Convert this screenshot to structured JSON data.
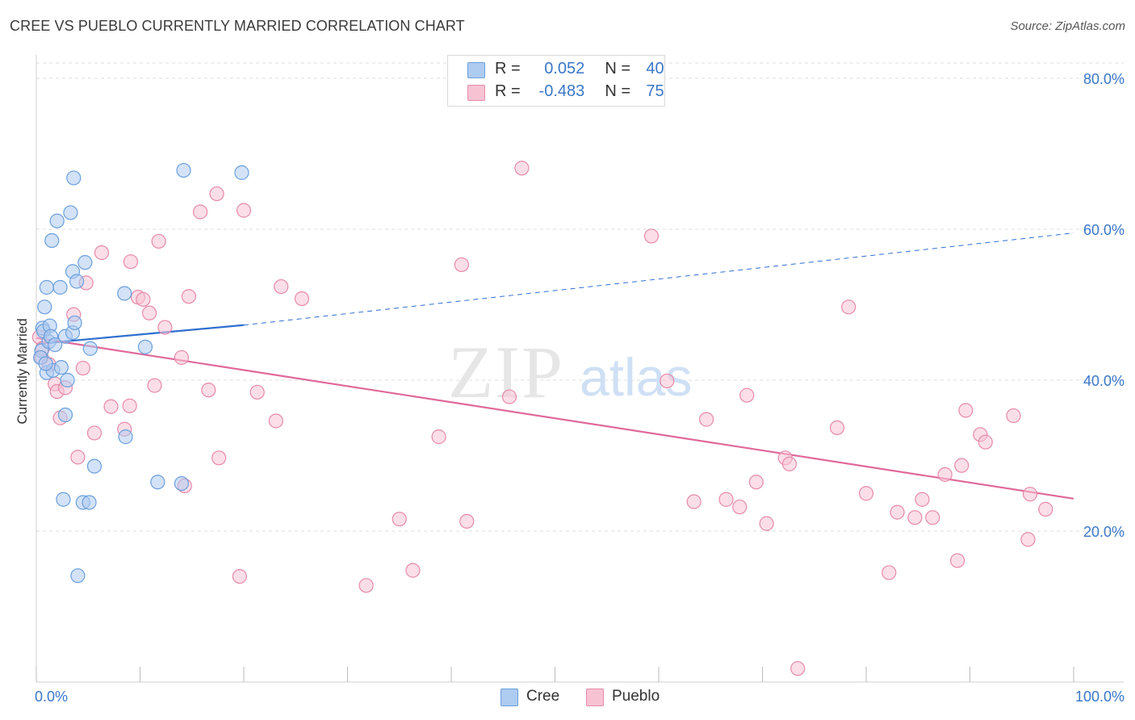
{
  "title": "CREE VS PUEBLO CURRENTLY MARRIED CORRELATION CHART",
  "source": "Source: ZipAtlas.com",
  "watermark": {
    "zip": "ZIP",
    "atlas": "atlas"
  },
  "legend": {
    "rows": [
      {
        "r_label": "R =",
        "r_value": "0.052",
        "n_label": "N =",
        "n_value": "40"
      },
      {
        "r_label": "R =",
        "r_value": "-0.483",
        "n_label": "N =",
        "n_value": "75"
      }
    ]
  },
  "bottom_legend": [
    "Cree",
    "Pueblo"
  ],
  "colors": {
    "cree_fill": "#aecbf0",
    "cree_stroke": "#6aa0dc",
    "cree_line": "#2f6fd0",
    "pueblo_fill": "#f7c3d3",
    "pueblo_stroke": "#e68aab",
    "pueblo_line": "#e0699a",
    "tick_label": "#3a77c8",
    "grid": "#dddddd"
  },
  "chart_data": {
    "type": "scatter",
    "title": "CREE VS PUEBLO CURRENTLY MARRIED CORRELATION CHART",
    "xlabel": "",
    "ylabel": "Currently Married",
    "xlim": [
      0,
      100
    ],
    "ylim": [
      0,
      80
    ],
    "x_tick_labels": [
      "0.0%",
      "100.0%"
    ],
    "y_ticks": [
      20,
      40,
      60,
      80
    ],
    "y_tick_labels": [
      "20.0%",
      "40.0%",
      "60.0%",
      "80.0%"
    ],
    "grid": true,
    "series": [
      {
        "name": "Cree",
        "points": [
          [
            0.5,
            43.9
          ],
          [
            0.6,
            46.9
          ],
          [
            0.7,
            46.5
          ],
          [
            0.8,
            49.7
          ],
          [
            1.0,
            52.3
          ],
          [
            1.0,
            41.0
          ],
          [
            1.2,
            45.1
          ],
          [
            1.3,
            47.2
          ],
          [
            1.4,
            45.8
          ],
          [
            1.5,
            58.5
          ],
          [
            1.6,
            41.3
          ],
          [
            1.8,
            44.7
          ],
          [
            2.0,
            61.1
          ],
          [
            2.3,
            52.3
          ],
          [
            2.4,
            41.7
          ],
          [
            2.6,
            24.2
          ],
          [
            2.8,
            45.8
          ],
          [
            2.8,
            35.4
          ],
          [
            3.0,
            40.0
          ],
          [
            3.3,
            62.2
          ],
          [
            3.5,
            54.4
          ],
          [
            3.5,
            46.3
          ],
          [
            3.6,
            66.8
          ],
          [
            3.7,
            47.6
          ],
          [
            3.9,
            53.1
          ],
          [
            4.0,
            14.1
          ],
          [
            4.5,
            23.8
          ],
          [
            4.7,
            55.6
          ],
          [
            5.1,
            23.8
          ],
          [
            5.2,
            44.2
          ],
          [
            5.6,
            28.6
          ],
          [
            8.5,
            51.5
          ],
          [
            8.6,
            32.5
          ],
          [
            10.5,
            44.4
          ],
          [
            11.7,
            26.5
          ],
          [
            14.0,
            26.3
          ],
          [
            14.2,
            67.8
          ],
          [
            19.8,
            67.5
          ],
          [
            0.4,
            43.0
          ],
          [
            0.9,
            42.2
          ]
        ],
        "trend": {
          "solid": [
            [
              0,
              44.8
            ],
            [
              20,
              47.3
            ]
          ],
          "dashed": [
            [
              20,
              47.3
            ],
            [
              100,
              59.5
            ]
          ]
        }
      },
      {
        "name": "Pueblo",
        "points": [
          [
            0.3,
            45.7
          ],
          [
            0.5,
            43.0
          ],
          [
            0.6,
            44.2
          ],
          [
            1.2,
            42.1
          ],
          [
            1.8,
            39.5
          ],
          [
            2.0,
            38.5
          ],
          [
            2.3,
            35.0
          ],
          [
            2.8,
            39.0
          ],
          [
            3.6,
            48.7
          ],
          [
            4.0,
            29.8
          ],
          [
            4.5,
            41.6
          ],
          [
            4.8,
            52.9
          ],
          [
            5.6,
            33.0
          ],
          [
            6.3,
            56.9
          ],
          [
            7.2,
            36.5
          ],
          [
            8.5,
            33.5
          ],
          [
            9.0,
            36.6
          ],
          [
            9.1,
            55.7
          ],
          [
            9.8,
            51.0
          ],
          [
            10.3,
            50.7
          ],
          [
            10.9,
            48.9
          ],
          [
            11.4,
            39.3
          ],
          [
            11.8,
            58.4
          ],
          [
            12.4,
            47.0
          ],
          [
            14.0,
            43.0
          ],
          [
            14.3,
            26.0
          ],
          [
            14.7,
            51.1
          ],
          [
            15.8,
            62.3
          ],
          [
            16.6,
            38.7
          ],
          [
            17.4,
            64.7
          ],
          [
            17.6,
            29.7
          ],
          [
            19.6,
            14.0
          ],
          [
            20.0,
            62.5
          ],
          [
            21.3,
            38.4
          ],
          [
            23.1,
            34.6
          ],
          [
            23.6,
            52.4
          ],
          [
            25.6,
            50.8
          ],
          [
            31.8,
            12.8
          ],
          [
            35.0,
            21.6
          ],
          [
            36.3,
            14.8
          ],
          [
            38.8,
            32.5
          ],
          [
            41.0,
            55.3
          ],
          [
            41.5,
            21.3
          ],
          [
            45.6,
            37.8
          ],
          [
            46.8,
            68.1
          ],
          [
            59.3,
            59.1
          ],
          [
            60.8,
            39.9
          ],
          [
            63.4,
            23.9
          ],
          [
            64.6,
            34.8
          ],
          [
            66.5,
            24.2
          ],
          [
            67.8,
            23.2
          ],
          [
            68.5,
            38.0
          ],
          [
            69.4,
            26.5
          ],
          [
            70.4,
            21.0
          ],
          [
            72.2,
            29.7
          ],
          [
            72.6,
            28.9
          ],
          [
            73.4,
            1.8
          ],
          [
            77.2,
            33.7
          ],
          [
            78.3,
            49.7
          ],
          [
            80.0,
            25.0
          ],
          [
            82.2,
            14.5
          ],
          [
            83.0,
            22.5
          ],
          [
            84.7,
            21.8
          ],
          [
            85.4,
            24.2
          ],
          [
            86.4,
            21.8
          ],
          [
            87.6,
            27.5
          ],
          [
            88.8,
            16.1
          ],
          [
            89.2,
            28.7
          ],
          [
            89.6,
            36.0
          ],
          [
            91.0,
            32.8
          ],
          [
            91.5,
            31.8
          ],
          [
            94.2,
            35.3
          ],
          [
            95.6,
            18.9
          ],
          [
            95.8,
            24.9
          ],
          [
            97.3,
            22.9
          ]
        ],
        "trend": {
          "solid": [
            [
              0,
              45.6
            ],
            [
              100,
              24.3
            ]
          ]
        }
      }
    ]
  }
}
